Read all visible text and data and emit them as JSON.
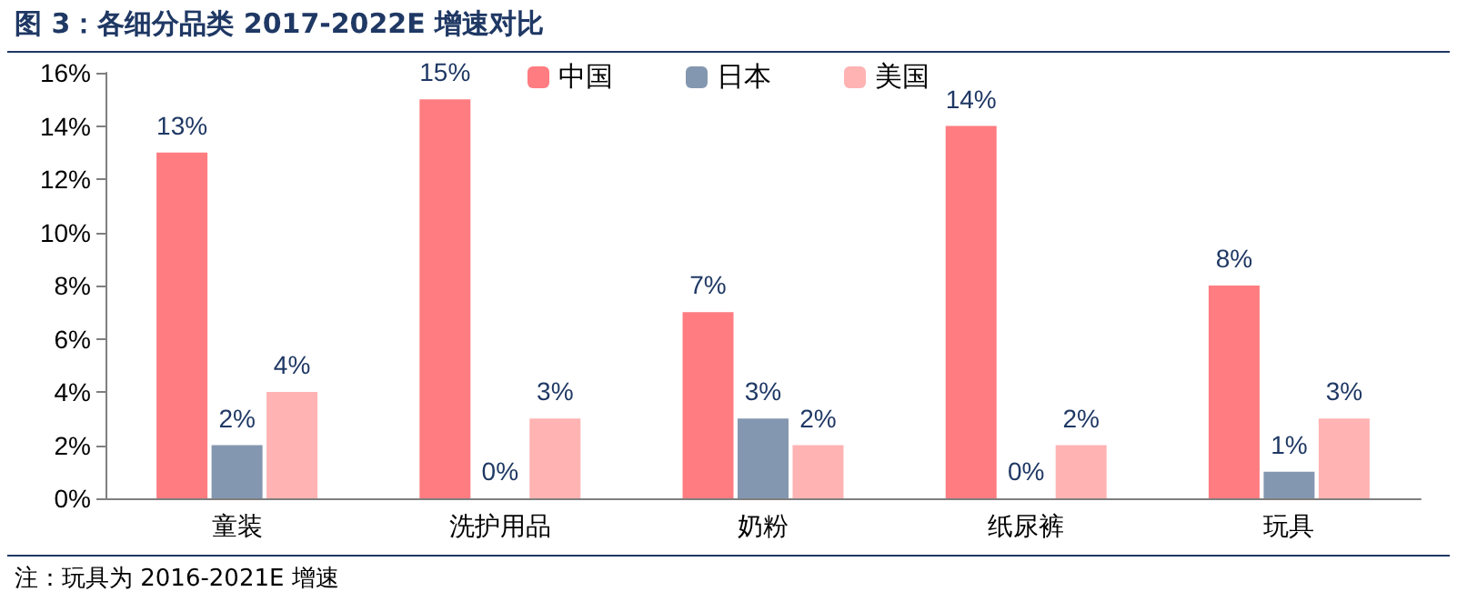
{
  "chart_data": {
    "type": "bar",
    "title": "图 3：各细分品类 2017-2022E 增速对比",
    "categories": [
      "童装",
      "洗护用品",
      "奶粉",
      "纸尿裤",
      "玩具"
    ],
    "series": [
      {
        "name": "中国",
        "color": "#ff7c80",
        "values": [
          13,
          15,
          7,
          14,
          8
        ],
        "value_labels": [
          "13%",
          "15%",
          "7%",
          "14%",
          "8%"
        ]
      },
      {
        "name": "日本",
        "color": "#8497b0",
        "values": [
          2,
          0,
          3,
          0,
          1
        ],
        "value_labels": [
          "2%",
          "0%",
          "3%",
          "0%",
          "1%"
        ]
      },
      {
        "name": "美国",
        "color": "#ffb3b3",
        "values": [
          4,
          3,
          2,
          2,
          3
        ],
        "value_labels": [
          "4%",
          "3%",
          "2%",
          "2%",
          "3%"
        ]
      }
    ],
    "ylim": [
      0,
      16
    ],
    "yticks": [
      {
        "value": 0,
        "label": "0%"
      },
      {
        "value": 2,
        "label": "2%"
      },
      {
        "value": 4,
        "label": "4%"
      },
      {
        "value": 6,
        "label": "6%"
      },
      {
        "value": 8,
        "label": "8%"
      },
      {
        "value": 10,
        "label": "10%"
      },
      {
        "value": 12,
        "label": "12%"
      },
      {
        "value": 14,
        "label": "14%"
      },
      {
        "value": 16,
        "label": "16%"
      }
    ],
    "grid": false,
    "legend": "top",
    "annotations": [
      "注：玩具为 2016-2021E 增速"
    ]
  }
}
